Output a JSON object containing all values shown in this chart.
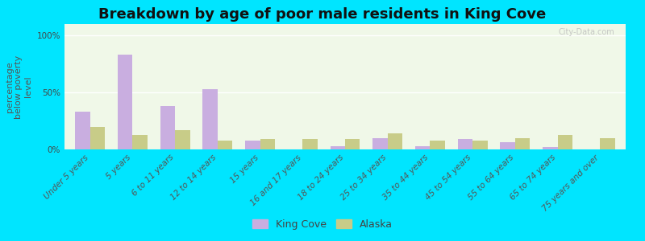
{
  "title": "Breakdown by age of poor male residents in King Cove",
  "ylabel": "percentage\nbelow poverty\nlevel",
  "categories": [
    "Under 5 years",
    "5 years",
    "6 to 11 years",
    "12 to 14 years",
    "15 years",
    "16 and 17 years",
    "18 to 24 years",
    "25 to 34 years",
    "35 to 44 years",
    "45 to 54 years",
    "55 to 64 years",
    "65 to 74 years",
    "75 years and over"
  ],
  "king_cove": [
    33,
    83,
    38,
    53,
    8,
    0,
    3,
    10,
    3,
    9,
    6,
    2,
    0
  ],
  "alaska": [
    20,
    13,
    17,
    8,
    9,
    9,
    9,
    14,
    8,
    8,
    10,
    13,
    10
  ],
  "king_cove_color": "#c9aee0",
  "alaska_color": "#c8cc88",
  "plot_bg_color": "#eef5df",
  "outer_bg_color": "#00e5ff",
  "yticks": [
    0,
    50,
    100
  ],
  "ytick_labels": [
    "0%",
    "50%",
    "100%"
  ],
  "ylim": [
    0,
    110
  ],
  "title_fontsize": 13,
  "axis_label_fontsize": 8,
  "tick_fontsize": 7.5,
  "legend_fontsize": 9,
  "bar_width": 0.35
}
